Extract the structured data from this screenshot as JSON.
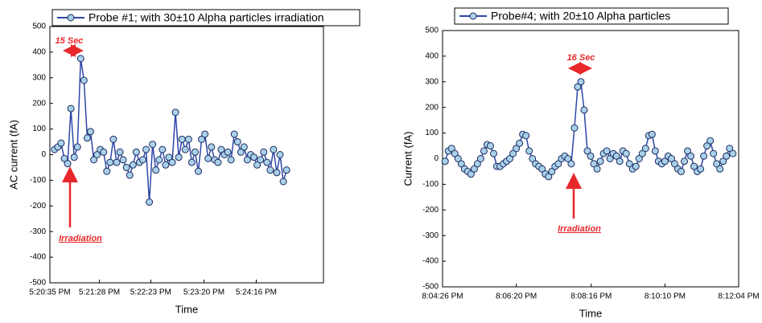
{
  "chart_data": [
    {
      "type": "line",
      "ylabel": "AC current (fA)",
      "xlabel": "Time",
      "annotations": [
        "15 Sec",
        "Irradiation"
      ],
      "xlim": [
        62435,
        62728
      ],
      "ylim": [
        -500,
        500
      ],
      "xticks": [
        {
          "value": 62435,
          "label": "5:20:35 PM"
        },
        {
          "value": 62488,
          "label": "5:21:28 PM"
        },
        {
          "value": 62543,
          "label": "5:22:23 PM"
        },
        {
          "value": 62600,
          "label": "5:23:20 PM"
        },
        {
          "value": 62656,
          "label": "5:24:16 PM"
        }
      ],
      "yticks": [
        -500,
        -400,
        -300,
        -200,
        -100,
        0,
        100,
        200,
        300,
        400,
        500
      ],
      "x": [
        62440,
        62443.5,
        62447,
        62450.5,
        62454,
        62457.5,
        62461,
        62464.5,
        62468,
        62471.5,
        62475,
        62478.5,
        62482,
        62485.5,
        62489,
        62492.5,
        62496,
        62499.5,
        62503,
        62506.5,
        62510,
        62513.5,
        62517,
        62520.5,
        62524,
        62527.5,
        62531,
        62534.5,
        62538,
        62541.5,
        62545,
        62548.5,
        62552,
        62555.5,
        62559,
        62562.5,
        62566,
        62569.5,
        62573,
        62576.5,
        62580,
        62583.5,
        62587,
        62590.5,
        62594,
        62597.5,
        62601,
        62604.5,
        62608,
        62611.5,
        62615,
        62618.5,
        62622,
        62625.5,
        62629,
        62632.5,
        62636,
        62639.5,
        62643,
        62646.5,
        62650,
        62653.5,
        62657,
        62660.5,
        62664,
        62667.5,
        62671,
        62674.5,
        62678,
        62681.5,
        62685,
        62688.5
      ],
      "series": [
        {
          "name": "Probe #1; with 30±10 Alpha particles irradiation",
          "color": "#2e46a8",
          "values": [
            20,
            30,
            45,
            -15,
            -35,
            180,
            -10,
            30,
            375,
            290,
            65,
            90,
            -20,
            0,
            20,
            10,
            -65,
            -30,
            60,
            -30,
            10,
            -20,
            -50,
            -80,
            -40,
            10,
            -30,
            -20,
            20,
            -185,
            40,
            -60,
            -20,
            20,
            -40,
            -10,
            -30,
            165,
            -10,
            60,
            20,
            60,
            -30,
            10,
            -65,
            60,
            80,
            -15,
            30,
            -20,
            -30,
            20,
            0,
            10,
            -20,
            80,
            50,
            10,
            30,
            -20,
            0,
            -10,
            -40,
            -20,
            10,
            -30,
            -60,
            20,
            -70,
            0,
            -105,
            -60
          ]
        }
      ]
    },
    {
      "type": "line",
      "ylabel": "Current (fA)",
      "xlabel": "Time",
      "annotations": [
        "16 Sec",
        "Irradiation"
      ],
      "xlim": [
        72266,
        72724
      ],
      "ylim": [
        -500,
        500
      ],
      "xticks": [
        {
          "value": 72266,
          "label": "8:04:26 PM"
        },
        {
          "value": 72380,
          "label": "8:06:20 PM"
        },
        {
          "value": 72496,
          "label": "8:08:16 PM"
        },
        {
          "value": 72610,
          "label": "8:10:10 PM"
        },
        {
          "value": 72724,
          "label": "8:12:04 PM"
        }
      ],
      "yticks": [
        -500,
        -400,
        -300,
        -200,
        -100,
        0,
        100,
        200,
        300,
        400,
        500
      ],
      "x": [
        72270,
        72275,
        72280,
        72285,
        72290,
        72295,
        72300,
        72305,
        72310,
        72315,
        72320,
        72325,
        72330,
        72335,
        72340,
        72345,
        72350,
        72355,
        72360,
        72365,
        72370,
        72375,
        72380,
        72385,
        72390,
        72395,
        72400,
        72405,
        72410,
        72415,
        72420,
        72425,
        72430,
        72435,
        72440,
        72445,
        72450,
        72455,
        72460,
        72465,
        72470,
        72475,
        72480,
        72485,
        72490,
        72495,
        72500,
        72505,
        72510,
        72515,
        72520,
        72525,
        72530,
        72535,
        72540,
        72545,
        72550,
        72555,
        72560,
        72565,
        72570,
        72575,
        72580,
        72585,
        72590,
        72595,
        72600,
        72605,
        72610,
        72615,
        72620,
        72625,
        72630,
        72635,
        72640,
        72645,
        72650,
        72655,
        72660,
        72665,
        72670,
        72675,
        72680,
        72685,
        72690,
        72695,
        72700,
        72705,
        72710,
        72715
      ],
      "series": [
        {
          "name": "Probe#4; with 20±10 Alpha particles",
          "color": "#2e46a8",
          "values": [
            -10,
            30,
            40,
            20,
            0,
            -20,
            -40,
            -50,
            -60,
            -40,
            -20,
            0,
            30,
            55,
            50,
            20,
            -30,
            -30,
            -20,
            -10,
            0,
            20,
            40,
            60,
            95,
            90,
            30,
            0,
            -20,
            -30,
            -40,
            -60,
            -70,
            -50,
            -30,
            -20,
            0,
            10,
            0,
            -20,
            120,
            280,
            300,
            190,
            30,
            10,
            -20,
            -40,
            -10,
            20,
            30,
            0,
            20,
            10,
            -10,
            30,
            20,
            -20,
            -40,
            -30,
            0,
            20,
            40,
            90,
            95,
            30,
            -10,
            -20,
            -10,
            10,
            0,
            -20,
            -40,
            -50,
            -10,
            30,
            10,
            -30,
            -50,
            -40,
            10,
            50,
            70,
            20,
            -20,
            -40,
            -10,
            10,
            40,
            20
          ]
        }
      ]
    }
  ]
}
